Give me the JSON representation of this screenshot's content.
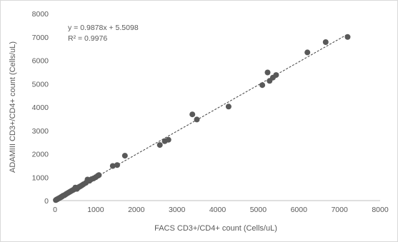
{
  "chart_data": {
    "type": "scatter",
    "title": "",
    "xlabel": "FACS CD3+/CD4+ count (Cells/uL)",
    "ylabel": "ADAMIII CD3+/CD4+ count (Cells/uL)",
    "xlim": [
      0,
      8000
    ],
    "ylim": [
      0,
      8000
    ],
    "xticks": [
      0,
      1000,
      2000,
      3000,
      4000,
      5000,
      6000,
      7000,
      8000
    ],
    "yticks": [
      0,
      1000,
      2000,
      3000,
      4000,
      5000,
      6000,
      7000,
      8000
    ],
    "grid": false,
    "legend": false,
    "trendline": {
      "slope": 0.9878,
      "intercept": 5.5098,
      "equation": "y = 0.9878x + 5.5098",
      "r2_label": "R² = 0.9976",
      "style": "dashed"
    },
    "marker_color": "#595959",
    "line_color": "#404040",
    "points": [
      [
        20,
        20
      ],
      [
        40,
        45
      ],
      [
        60,
        60
      ],
      [
        80,
        85
      ],
      [
        100,
        100
      ],
      [
        120,
        120
      ],
      [
        140,
        145
      ],
      [
        160,
        160
      ],
      [
        180,
        185
      ],
      [
        200,
        210
      ],
      [
        230,
        230
      ],
      [
        260,
        265
      ],
      [
        290,
        300
      ],
      [
        320,
        330
      ],
      [
        350,
        360
      ],
      [
        380,
        390
      ],
      [
        410,
        420
      ],
      [
        440,
        450
      ],
      [
        470,
        480
      ],
      [
        500,
        560
      ],
      [
        540,
        500
      ],
      [
        580,
        570
      ],
      [
        620,
        610
      ],
      [
        660,
        650
      ],
      [
        700,
        700
      ],
      [
        760,
        760
      ],
      [
        800,
        900
      ],
      [
        850,
        850
      ],
      [
        900,
        920
      ],
      [
        950,
        950
      ],
      [
        1000,
        1000
      ],
      [
        1050,
        1060
      ],
      [
        1080,
        1090
      ],
      [
        1420,
        1480
      ],
      [
        1530,
        1520
      ],
      [
        1720,
        1920
      ],
      [
        2580,
        2380
      ],
      [
        2700,
        2540
      ],
      [
        2790,
        2600
      ],
      [
        3380,
        3690
      ],
      [
        3490,
        3470
      ],
      [
        4270,
        4020
      ],
      [
        5100,
        4940
      ],
      [
        5230,
        5480
      ],
      [
        5280,
        5120
      ],
      [
        5360,
        5260
      ],
      [
        5440,
        5370
      ],
      [
        6210,
        6340
      ],
      [
        6660,
        6780
      ],
      [
        7200,
        7000
      ]
    ]
  }
}
